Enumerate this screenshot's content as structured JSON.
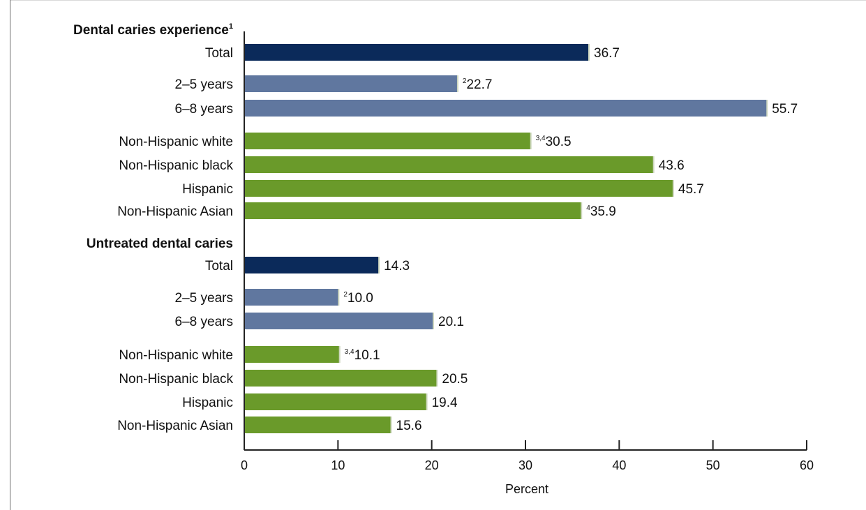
{
  "chart_data": {
    "type": "bar",
    "orientation": "horizontal",
    "xlabel": "Percent",
    "xlim": [
      0,
      60
    ],
    "xticks": [
      "0",
      "10",
      "20",
      "30",
      "40",
      "50",
      "60"
    ],
    "grid": false,
    "colors": {
      "total": "#0b2a5a",
      "age": "#60779f",
      "race": "#6a9a2a",
      "bar_edge": "#cfd8c0"
    },
    "sections": [
      {
        "heading": "Dental caries experience",
        "heading_sup": "1",
        "bars": [
          {
            "label": "Total",
            "value": 36.7,
            "value_label": "36.7",
            "sup": "",
            "group": "total"
          },
          {
            "label": "2–5 years",
            "value": 22.7,
            "value_label": "22.7",
            "sup": "2",
            "group": "age"
          },
          {
            "label": "6–8 years",
            "value": 55.7,
            "value_label": "55.7",
            "sup": "",
            "group": "age"
          },
          {
            "label": "Non-Hispanic white",
            "value": 30.5,
            "value_label": "30.5",
            "sup": "3,4",
            "group": "race"
          },
          {
            "label": "Non-Hispanic black",
            "value": 43.6,
            "value_label": "43.6",
            "sup": "",
            "group": "race"
          },
          {
            "label": "Hispanic",
            "value": 45.7,
            "value_label": "45.7",
            "sup": "",
            "group": "race"
          },
          {
            "label": "Non-Hispanic Asian",
            "value": 35.9,
            "value_label": "35.9",
            "sup": "4",
            "group": "race"
          }
        ]
      },
      {
        "heading": "Untreated dental caries",
        "heading_sup": "",
        "bars": [
          {
            "label": "Total",
            "value": 14.3,
            "value_label": "14.3",
            "sup": "",
            "group": "total"
          },
          {
            "label": "2–5 years",
            "value": 10.0,
            "value_label": "10.0",
            "sup": "2",
            "group": "age"
          },
          {
            "label": "6–8 years",
            "value": 20.1,
            "value_label": "20.1",
            "sup": "",
            "group": "age"
          },
          {
            "label": "Non-Hispanic white",
            "value": 10.1,
            "value_label": "10.1",
            "sup": "3,4",
            "group": "race"
          },
          {
            "label": "Non-Hispanic black",
            "value": 20.5,
            "value_label": "20.5",
            "sup": "",
            "group": "race"
          },
          {
            "label": "Hispanic",
            "value": 19.4,
            "value_label": "19.4",
            "sup": "",
            "group": "race"
          },
          {
            "label": "Non-Hispanic Asian",
            "value": 15.6,
            "value_label": "15.6",
            "sup": "",
            "group": "race"
          }
        ]
      }
    ]
  }
}
